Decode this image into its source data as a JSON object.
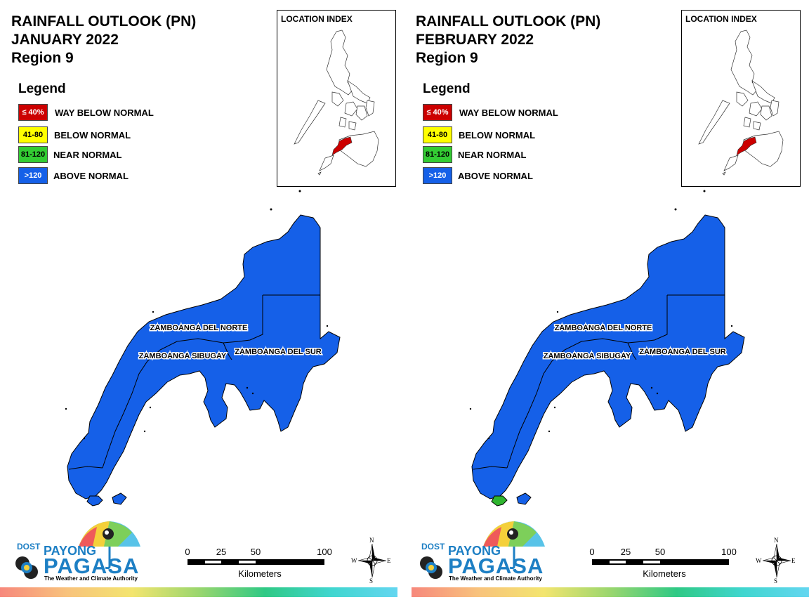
{
  "panels": [
    {
      "title": [
        "RAINFALL OUTLOOK (PN)",
        "JANUARY 2022",
        "Region 9"
      ],
      "map_fill": "#1560e8",
      "tip_fill": "#1560e8",
      "provinces": [
        "ZAMBOANGA DEL NORTE",
        "ZAMBOANGA SIBUGAY",
        "ZAMBOANGA DEL SUR"
      ]
    },
    {
      "title": [
        "RAINFALL OUTLOOK (PN)",
        "FEBRUARY 2022",
        "Region 9"
      ],
      "map_fill": "#1560e8",
      "tip_fill": "#2fb52f",
      "provinces": [
        "ZAMBOANGA DEL NORTE",
        "ZAMBOANGA SIBUGAY",
        "ZAMBOANGA DEL SUR"
      ]
    }
  ],
  "legend": {
    "heading": "Legend",
    "items": [
      {
        "range": "≤ 40%",
        "label": "WAY BELOW NORMAL",
        "color": "#cc0000",
        "text_color": "#ffffff"
      },
      {
        "range": "41-80",
        "label": "BELOW NORMAL",
        "color": "#ffff00",
        "text_color": "#000000"
      },
      {
        "range": "81-120",
        "label": "NEAR NORMAL",
        "color": "#33cc33",
        "text_color": "#000000"
      },
      {
        "range": ">120",
        "label": "ABOVE NORMAL",
        "color": "#1560e8",
        "text_color": "#ffffff"
      }
    ]
  },
  "location_index": {
    "title": "LOCATION INDEX",
    "highlight_color": "#cc0000"
  },
  "logo": {
    "agency": "DOST",
    "payong": "PAYONG",
    "pagasa": "PAGASA",
    "tagline": "The Weather and Climate Authority"
  },
  "scale": {
    "ticks": [
      "0",
      "25",
      "50",
      "100"
    ],
    "units": "Kilometers"
  },
  "compass": {
    "n": "N",
    "s": "S",
    "e": "E",
    "w": "W"
  }
}
